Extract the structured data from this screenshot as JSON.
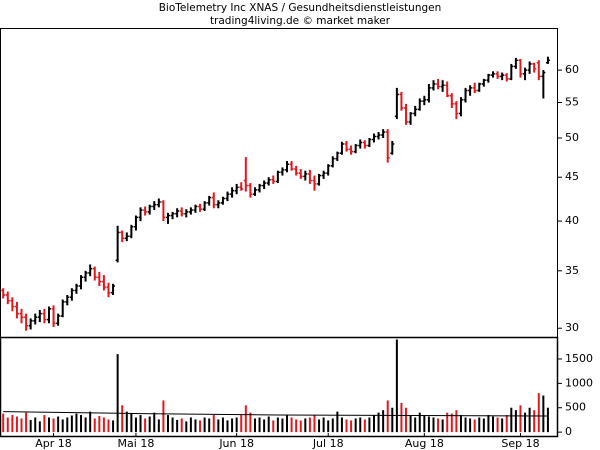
{
  "chart_data": {
    "type": "ohlc",
    "title": "BioTelemetry Inc XNAS / Gesundheitsdienstleistungen",
    "subtitle": "trading4living.de © market maker",
    "up_color": "#000000",
    "down_color": "#e0191e",
    "log_scale": true,
    "xlim": [
      -0.7,
      121.2
    ],
    "xticks": [
      {
        "value": 11,
        "label": "Apr 18"
      },
      {
        "value": 29,
        "label": "Mai 18"
      },
      {
        "value": 51,
        "label": "Jun 18"
      },
      {
        "value": 71,
        "label": "Jul 18"
      },
      {
        "value": 92,
        "label": "Aug 18"
      },
      {
        "value": 113,
        "label": "Sep 18"
      }
    ],
    "ylim": [
      29.3,
      67
    ],
    "yticks": [
      30,
      35,
      40,
      45,
      50,
      55,
      60
    ],
    "y2lim": [
      -100,
      1930
    ],
    "y2ticks": [
      0,
      500,
      1000,
      1500
    ],
    "ohlc": [
      [
        33.2,
        33.4,
        32.5,
        32.8
      ],
      [
        32.8,
        33.1,
        32.0,
        32.3
      ],
      [
        32.3,
        32.6,
        31.4,
        31.8
      ],
      [
        31.8,
        32.2,
        30.8,
        31.2
      ],
      [
        31.2,
        31.6,
        30.4,
        30.9
      ],
      [
        30.9,
        31.2,
        29.8,
        30.2
      ],
      [
        30.2,
        30.8,
        29.9,
        30.6
      ],
      [
        30.6,
        31.2,
        30.3,
        30.9
      ],
      [
        30.9,
        31.5,
        30.5,
        31.2
      ],
      [
        31.2,
        31.6,
        30.4,
        30.7
      ],
      [
        30.7,
        31.8,
        30.4,
        31.6
      ],
      [
        31.6,
        31.9,
        30.1,
        30.4
      ],
      [
        30.4,
        31.2,
        30.2,
        31.0
      ],
      [
        31.0,
        32.4,
        30.9,
        32.2
      ],
      [
        32.2,
        32.8,
        31.9,
        32.6
      ],
      [
        32.6,
        33.4,
        32.3,
        33.2
      ],
      [
        33.2,
        33.8,
        32.9,
        33.6
      ],
      [
        33.6,
        34.6,
        33.3,
        34.4
      ],
      [
        34.4,
        35.0,
        34.0,
        34.8
      ],
      [
        34.8,
        35.6,
        34.5,
        35.2
      ],
      [
        35.2,
        35.4,
        34.1,
        34.4
      ],
      [
        34.4,
        34.9,
        33.6,
        34.0
      ],
      [
        34.0,
        34.6,
        33.2,
        33.5
      ],
      [
        33.5,
        33.9,
        32.6,
        33.0
      ],
      [
        33.0,
        33.8,
        32.8,
        33.6
      ],
      [
        36.0,
        39.5,
        35.8,
        38.8
      ],
      [
        38.8,
        39.0,
        37.8,
        38.2
      ],
      [
        38.2,
        38.8,
        37.9,
        38.4
      ],
      [
        38.4,
        39.6,
        38.2,
        39.4
      ],
      [
        39.4,
        40.6,
        39.0,
        40.4
      ],
      [
        40.4,
        41.5,
        40.0,
        41.2
      ],
      [
        41.2,
        41.6,
        40.6,
        41.0
      ],
      [
        41.0,
        41.8,
        40.7,
        41.6
      ],
      [
        41.6,
        42.2,
        41.2,
        41.8
      ],
      [
        41.8,
        42.5,
        41.5,
        42.1
      ],
      [
        42.1,
        42.3,
        40.0,
        40.4
      ],
      [
        40.4,
        40.9,
        39.7,
        40.6
      ],
      [
        40.6,
        41.0,
        40.2,
        40.8
      ],
      [
        40.8,
        41.4,
        40.4,
        41.1
      ],
      [
        41.1,
        41.5,
        40.5,
        40.8
      ],
      [
        40.8,
        41.3,
        40.4,
        41.0
      ],
      [
        41.0,
        41.5,
        40.7,
        41.2
      ],
      [
        41.2,
        41.8,
        40.9,
        41.6
      ],
      [
        41.6,
        41.9,
        41.0,
        41.3
      ],
      [
        41.3,
        42.2,
        41.1,
        42.0
      ],
      [
        42.0,
        42.8,
        41.7,
        42.6
      ],
      [
        42.6,
        43.2,
        41.4,
        41.8
      ],
      [
        41.8,
        42.3,
        41.4,
        42.0
      ],
      [
        42.0,
        42.7,
        41.8,
        42.5
      ],
      [
        42.5,
        43.3,
        42.2,
        43.0
      ],
      [
        43.0,
        43.8,
        42.6,
        43.4
      ],
      [
        43.4,
        44.2,
        43.0,
        43.8
      ],
      [
        43.8,
        44.4,
        43.4,
        43.6
      ],
      [
        44.6,
        47.5,
        43.3,
        44.0
      ],
      [
        44.0,
        44.3,
        42.6,
        43.0
      ],
      [
        43.0,
        43.8,
        42.8,
        43.5
      ],
      [
        43.5,
        44.2,
        43.2,
        44.0
      ],
      [
        44.0,
        44.6,
        43.6,
        44.3
      ],
      [
        44.3,
        45.0,
        44.0,
        44.7
      ],
      [
        44.7,
        45.2,
        44.2,
        44.5
      ],
      [
        44.5,
        45.8,
        44.3,
        45.6
      ],
      [
        45.6,
        46.2,
        45.2,
        45.9
      ],
      [
        45.9,
        47.0,
        45.6,
        46.6
      ],
      [
        46.6,
        47.0,
        45.8,
        46.0
      ],
      [
        46.0,
        46.4,
        45.2,
        45.5
      ],
      [
        45.5,
        46.0,
        44.8,
        45.1
      ],
      [
        45.1,
        45.8,
        44.6,
        45.4
      ],
      [
        45.4,
        45.9,
        44.2,
        44.6
      ],
      [
        44.6,
        45.2,
        43.4,
        44.2
      ],
      [
        44.2,
        45.4,
        44.0,
        45.2
      ],
      [
        45.2,
        45.8,
        44.8,
        45.5
      ],
      [
        45.5,
        46.6,
        45.2,
        46.4
      ],
      [
        46.4,
        47.6,
        46.2,
        47.3
      ],
      [
        47.3,
        48.2,
        47.0,
        48.0
      ],
      [
        48.0,
        49.5,
        47.8,
        49.2
      ],
      [
        49.2,
        49.6,
        48.2,
        48.5
      ],
      [
        48.5,
        49.0,
        47.8,
        48.2
      ],
      [
        48.2,
        49.2,
        48.0,
        49.0
      ],
      [
        49.0,
        49.8,
        48.6,
        49.4
      ],
      [
        49.4,
        49.7,
        48.6,
        49.0
      ],
      [
        49.0,
        50.0,
        48.8,
        49.8
      ],
      [
        49.8,
        50.6,
        49.4,
        50.2
      ],
      [
        50.2,
        50.8,
        49.8,
        50.4
      ],
      [
        50.4,
        51.2,
        50.0,
        50.8
      ],
      [
        50.8,
        51.2,
        46.8,
        47.4
      ],
      [
        48.0,
        49.6,
        47.8,
        49.2
      ],
      [
        53.0,
        57.2,
        52.6,
        56.2
      ],
      [
        56.2,
        56.6,
        53.8,
        54.2
      ],
      [
        54.2,
        54.8,
        51.8,
        52.2
      ],
      [
        52.2,
        53.6,
        51.8,
        53.4
      ],
      [
        53.4,
        54.5,
        53.0,
        54.0
      ],
      [
        54.0,
        55.6,
        53.8,
        55.2
      ],
      [
        55.2,
        56.0,
        54.6,
        55.4
      ],
      [
        55.4,
        57.8,
        55.0,
        57.2
      ],
      [
        57.2,
        58.4,
        56.8,
        57.8
      ],
      [
        57.8,
        58.6,
        57.0,
        57.4
      ],
      [
        57.4,
        58.4,
        56.6,
        57.6
      ],
      [
        57.6,
        58.2,
        55.8,
        56.0
      ],
      [
        56.0,
        56.4,
        54.2,
        54.8
      ],
      [
        54.8,
        55.2,
        52.6,
        53.4
      ],
      [
        53.4,
        55.8,
        53.0,
        55.4
      ],
      [
        55.4,
        57.2,
        55.0,
        56.8
      ],
      [
        56.8,
        57.6,
        56.0,
        57.2
      ],
      [
        57.2,
        58.0,
        56.4,
        56.8
      ],
      [
        56.8,
        58.0,
        56.6,
        57.8
      ],
      [
        57.8,
        58.6,
        57.4,
        58.4
      ],
      [
        58.4,
        59.4,
        58.0,
        59.2
      ],
      [
        59.2,
        59.8,
        58.8,
        59.4
      ],
      [
        59.4,
        59.8,
        58.6,
        59.0
      ],
      [
        59.0,
        59.6,
        58.4,
        59.2
      ],
      [
        59.2,
        59.5,
        58.2,
        58.6
      ],
      [
        58.6,
        61.0,
        58.4,
        60.6
      ],
      [
        60.6,
        62.0,
        60.2,
        61.6
      ],
      [
        61.6,
        61.8,
        58.8,
        59.4
      ],
      [
        59.4,
        60.4,
        58.4,
        60.0
      ],
      [
        60.0,
        61.4,
        59.4,
        61.0
      ],
      [
        61.0,
        61.2,
        59.6,
        60.2
      ],
      [
        61.2,
        61.6,
        58.4,
        59.0
      ],
      [
        59.0,
        60.0,
        55.6,
        59.6
      ],
      [
        61.2,
        62.2,
        61.0,
        61.6
      ]
    ],
    "volume": [
      380,
      300,
      350,
      320,
      280,
      400,
      250,
      300,
      220,
      350,
      300,
      280,
      320,
      260,
      300,
      340,
      380,
      350,
      300,
      420,
      280,
      330,
      300,
      260,
      240,
      1600,
      550,
      420,
      380,
      300,
      350,
      280,
      320,
      400,
      260,
      650,
      350,
      300,
      250,
      280,
      220,
      300,
      260,
      240,
      300,
      280,
      350,
      260,
      300,
      240,
      280,
      300,
      350,
      550,
      400,
      280,
      300,
      260,
      320,
      240,
      300,
      280,
      350,
      300,
      260,
      240,
      280,
      300,
      350,
      260,
      300,
      240,
      280,
      420,
      300,
      260,
      240,
      280,
      300,
      260,
      300,
      350,
      400,
      450,
      650,
      500,
      1900,
      600,
      500,
      350,
      300,
      400,
      350,
      320,
      300,
      280,
      260,
      400,
      380,
      450,
      350,
      300,
      280,
      260,
      300,
      280,
      350,
      320,
      300,
      280,
      350,
      500,
      450,
      550,
      400,
      500,
      450,
      800,
      750,
      500
    ],
    "volume_average": {
      "color": "#000000",
      "x": [
        0,
        30,
        60,
        90,
        119
      ],
      "values": [
        420,
        380,
        350,
        340,
        330
      ]
    }
  }
}
